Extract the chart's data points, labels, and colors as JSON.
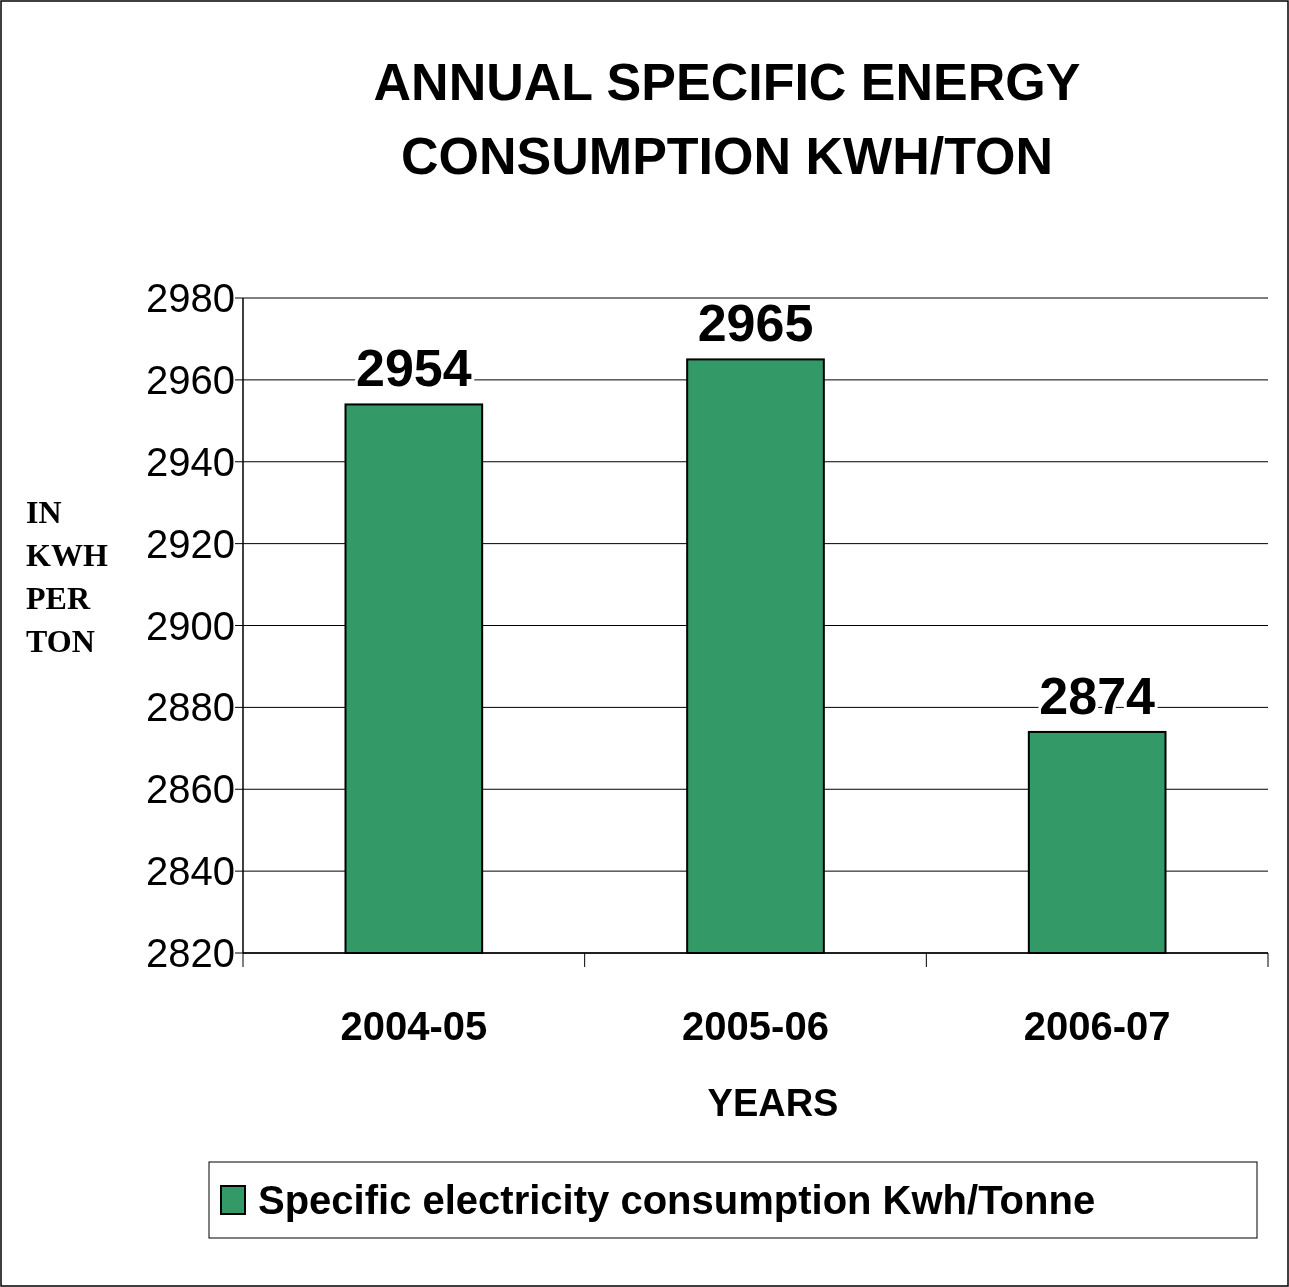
{
  "chart_data": {
    "type": "bar",
    "title": "ANNUAL SPECIFIC ENERGY CONSUMPTION KWH/TON",
    "xlabel": "YEARS",
    "ylabel": "IN KWH PER TON",
    "categories": [
      "2004-05",
      "2005-06",
      "2006-07"
    ],
    "series": [
      {
        "name": "Specific electricity consumption Kwh/Tonne",
        "color": "#339966",
        "values": [
          2954,
          2965,
          2874
        ]
      }
    ],
    "ylim": [
      2820,
      2980
    ],
    "yticks": [
      2820,
      2840,
      2860,
      2880,
      2900,
      2920,
      2940,
      2960,
      2980
    ],
    "grid": "y",
    "legend": "bottom",
    "data_labels": true
  }
}
